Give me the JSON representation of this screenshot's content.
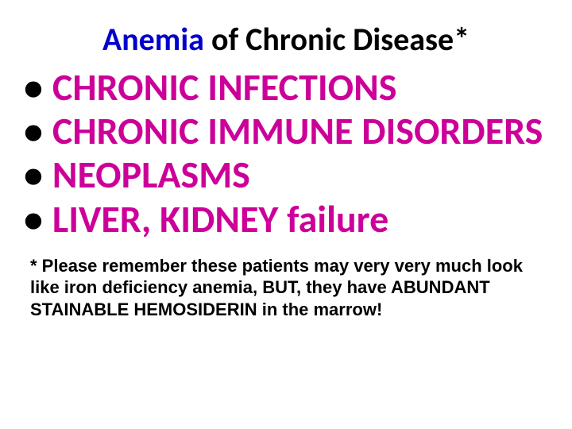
{
  "title": {
    "part1": "Anemia",
    "part2": " of Chronic Disease*"
  },
  "bullets": [
    "CHRONIC INFECTIONS",
    "CHRONIC IMMUNE DISORDERS",
    "NEOPLASMS",
    "LIVER, KIDNEY failure"
  ],
  "footnote": "* Please remember these patients may very very much look like iron deficiency anemia, BUT, they have ABUNDANT STAINABLE HEMOSIDERIN in the marrow!",
  "colors": {
    "title_highlight": "#0000cc",
    "title_rest": "#000000",
    "bullet_text": "#cc0099",
    "bullet_marker": "#000000",
    "footnote": "#000000",
    "background": "#ffffff"
  },
  "typography": {
    "title_fontsize": 40,
    "bullet_fontsize": 48,
    "footnote_fontsize": 22,
    "title_weight": "bold",
    "bullet_weight": "bold",
    "footnote_weight": "bold"
  }
}
